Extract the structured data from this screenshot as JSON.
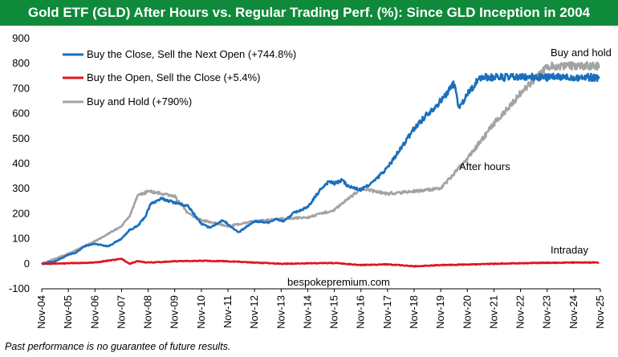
{
  "chart_data": {
    "type": "line",
    "title": "Gold ETF (GLD) After Hours vs. Regular Trading Perf. (%): Since GLD Inception in 2004",
    "xlabel": "",
    "ylabel": "",
    "ylim": [
      -100,
      900
    ],
    "yticks": [
      -100,
      0,
      100,
      200,
      300,
      400,
      500,
      600,
      700,
      800,
      900
    ],
    "x_tick_labels": [
      "Nov-04",
      "Nov-05",
      "Nov-06",
      "Nov-07",
      "Nov-08",
      "Nov-09",
      "Nov-10",
      "Nov-11",
      "Nov-12",
      "Nov-13",
      "Nov-14",
      "Nov-15",
      "Nov-16",
      "Nov-17",
      "Nov-18",
      "Nov-19",
      "Nov-20",
      "Nov-21",
      "Nov-22",
      "Nov-23",
      "Nov-24",
      "Nov-25"
    ],
    "legend_position": "top-left",
    "grid": false,
    "series": [
      {
        "name": "Buy the Close, Sell the Next Open (+744.8%)",
        "color": "#1a6fbd",
        "x": [
          0,
          0.5,
          1,
          1.3,
          1.6,
          2,
          2.5,
          3,
          3.3,
          3.6,
          3.9,
          4.1,
          4.5,
          5,
          5.5,
          6,
          6.3,
          6.6,
          6.8,
          7.1,
          7.4,
          7.6,
          8,
          8.5,
          8.8,
          9.1,
          9.5,
          10,
          10.5,
          10.8,
          11,
          11.3,
          11.5,
          12,
          12.5,
          13,
          13.5,
          14,
          14.5,
          15,
          15.5,
          15.7,
          16,
          16.5,
          17,
          17.2,
          17.5,
          18,
          18.5,
          19,
          19.3,
          19.6,
          20,
          20.4,
          20.6,
          20.8,
          21,
          21
        ],
        "y": [
          0,
          10,
          35,
          45,
          70,
          80,
          70,
          100,
          135,
          150,
          190,
          240,
          260,
          245,
          230,
          160,
          145,
          160,
          175,
          150,
          125,
          140,
          170,
          165,
          178,
          170,
          205,
          225,
          300,
          330,
          320,
          335,
          310,
          295,
          330,
          385,
          460,
          540,
          600,
          650,
          720,
          620,
          680,
          745,
          745,
          745,
          745,
          745,
          745,
          745,
          745,
          745,
          745,
          745,
          745,
          745,
          745,
          745
        ]
      },
      {
        "name": "Buy the Open, Sell the Close (+5.4%)",
        "color": "#e0141e",
        "x": [
          0,
          1,
          2,
          3,
          3.3,
          3.6,
          4,
          5,
          6,
          7,
          8,
          9,
          10,
          11,
          12,
          13,
          14,
          15,
          16,
          17,
          18,
          19,
          20,
          21
        ],
        "y": [
          0,
          2,
          5,
          20,
          0,
          10,
          5,
          10,
          12,
          10,
          5,
          0,
          2,
          3,
          -5,
          -2,
          -10,
          -5,
          -3,
          0,
          2,
          4,
          5,
          5.4
        ]
      },
      {
        "name": "Buy and Hold (+790%)",
        "color": "#a3a3a3",
        "x": [
          0,
          1,
          2,
          3,
          3.3,
          3.6,
          4,
          5,
          5.5,
          6,
          7,
          8,
          9,
          10,
          11,
          12,
          13,
          14,
          15,
          16,
          17,
          18,
          19,
          20,
          21
        ],
        "y": [
          0,
          40,
          90,
          150,
          190,
          270,
          290,
          270,
          200,
          175,
          150,
          170,
          180,
          185,
          215,
          300,
          280,
          290,
          300,
          420,
          560,
          680,
          790,
          790,
          790
        ]
      }
    ],
    "annotations": [
      {
        "text": "Buy and hold"
      },
      {
        "text": "After hours"
      },
      {
        "text": "Intraday"
      },
      {
        "text": "bespokepremium.com"
      }
    ],
    "footnote": "Past performance is no guarantee of future results."
  }
}
